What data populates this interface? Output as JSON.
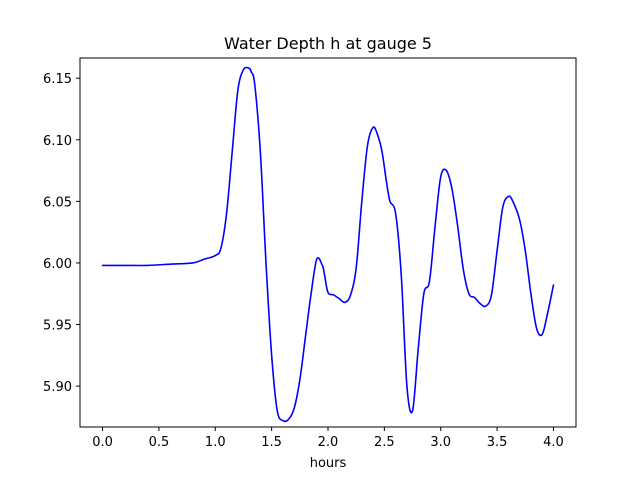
{
  "chart_data": {
    "type": "line",
    "title": "Water Depth h at gauge 5",
    "xlabel": "hours",
    "ylabel": "",
    "xlim": [
      -0.2,
      4.2
    ],
    "ylim": [
      5.8668,
      6.1664
    ],
    "xticks": [
      0.0,
      0.5,
      1.0,
      1.5,
      2.0,
      2.5,
      3.0,
      3.5,
      4.0
    ],
    "xtick_labels": [
      "0.0",
      "0.5",
      "1.0",
      "1.5",
      "2.0",
      "2.5",
      "3.0",
      "3.5",
      "4.0"
    ],
    "yticks": [
      5.9,
      5.95,
      6.0,
      6.05,
      6.1,
      6.15
    ],
    "ytick_labels": [
      "5.90",
      "5.95",
      "6.00",
      "6.05",
      "6.10",
      "6.15"
    ],
    "grid": false,
    "legend": "none",
    "series": [
      {
        "color": "#0000ff",
        "x": [
          0.0,
          0.2,
          0.4,
          0.6,
          0.8,
          0.9,
          1.0,
          1.05,
          1.1,
          1.15,
          1.2,
          1.25,
          1.3,
          1.32,
          1.35,
          1.4,
          1.45,
          1.5,
          1.55,
          1.6,
          1.65,
          1.7,
          1.75,
          1.8,
          1.85,
          1.9,
          1.95,
          1.97,
          2.0,
          2.05,
          2.1,
          2.15,
          2.2,
          2.25,
          2.3,
          2.35,
          2.4,
          2.44,
          2.48,
          2.52,
          2.55,
          2.6,
          2.65,
          2.7,
          2.75,
          2.8,
          2.85,
          2.9,
          2.95,
          3.0,
          3.05,
          3.1,
          3.15,
          3.2,
          3.25,
          3.3,
          3.35,
          3.4,
          3.45,
          3.5,
          3.55,
          3.6,
          3.64,
          3.7,
          3.75,
          3.8,
          3.85,
          3.9,
          3.95,
          4.0
        ],
        "y": [
          5.998,
          5.998,
          5.998,
          5.999,
          6.0,
          6.003,
          6.006,
          6.012,
          6.04,
          6.09,
          6.14,
          6.157,
          6.158,
          6.155,
          6.145,
          6.09,
          6.0,
          5.925,
          5.88,
          5.872,
          5.873,
          5.882,
          5.905,
          5.94,
          5.975,
          6.003,
          5.998,
          5.99,
          5.976,
          5.974,
          5.971,
          5.968,
          5.974,
          5.996,
          6.05,
          6.095,
          6.11,
          6.104,
          6.09,
          6.065,
          6.05,
          6.04,
          5.99,
          5.9,
          5.88,
          5.93,
          5.975,
          5.985,
          6.03,
          6.07,
          6.075,
          6.06,
          6.03,
          5.995,
          5.975,
          5.972,
          5.967,
          5.965,
          5.974,
          6.01,
          6.045,
          6.054,
          6.05,
          6.035,
          6.01,
          5.975,
          5.947,
          5.942,
          5.96,
          5.982
        ]
      }
    ]
  }
}
